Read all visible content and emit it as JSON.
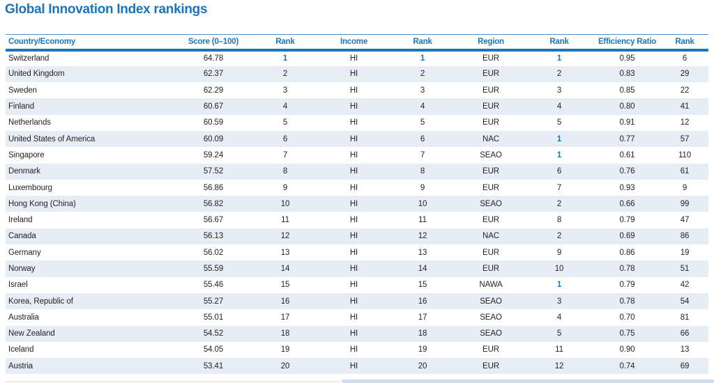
{
  "title": "Global Innovation Index rankings",
  "colors": {
    "accent": "#1b75bc",
    "row_stripe": "#e7edf4",
    "text": "#231f20",
    "top_rank": "#1b75bc",
    "bottom_bar": "#d3deea",
    "bottom_hairline": "#f1e8e6"
  },
  "table": {
    "headers": [
      "Country/Economy",
      "Score (0–100)",
      "Rank",
      "Income",
      "Rank",
      "Region",
      "Rank",
      "Efficiency Ratio",
      "Rank"
    ],
    "rows": [
      {
        "country": "Switzerland",
        "score": "64.78",
        "rank": "1",
        "rank_top": true,
        "income": "HI",
        "income_rank": "1",
        "income_rank_top": true,
        "region": "EUR",
        "region_rank": "1",
        "region_rank_top": true,
        "efficiency": "0.95",
        "efficiency_rank": "6"
      },
      {
        "country": "United Kingdom",
        "score": "62.37",
        "rank": "2",
        "income": "HI",
        "income_rank": "2",
        "region": "EUR",
        "region_rank": "2",
        "efficiency": "0.83",
        "efficiency_rank": "29"
      },
      {
        "country": "Sweden",
        "score": "62.29",
        "rank": "3",
        "income": "HI",
        "income_rank": "3",
        "region": "EUR",
        "region_rank": "3",
        "efficiency": "0.85",
        "efficiency_rank": "22"
      },
      {
        "country": "Finland",
        "score": "60.67",
        "rank": "4",
        "income": "HI",
        "income_rank": "4",
        "region": "EUR",
        "region_rank": "4",
        "efficiency": "0.80",
        "efficiency_rank": "41"
      },
      {
        "country": "Netherlands",
        "score": "60.59",
        "rank": "5",
        "income": "HI",
        "income_rank": "5",
        "region": "EUR",
        "region_rank": "5",
        "efficiency": "0.91",
        "efficiency_rank": "12"
      },
      {
        "country": "United States of America",
        "score": "60.09",
        "rank": "6",
        "income": "HI",
        "income_rank": "6",
        "region": "NAC",
        "region_rank": "1",
        "region_rank_top": true,
        "efficiency": "0.77",
        "efficiency_rank": "57"
      },
      {
        "country": "Singapore",
        "score": "59.24",
        "rank": "7",
        "income": "HI",
        "income_rank": "7",
        "region": "SEAO",
        "region_rank": "1",
        "region_rank_top": true,
        "efficiency": "0.61",
        "efficiency_rank": "110"
      },
      {
        "country": "Denmark",
        "score": "57.52",
        "rank": "8",
        "income": "HI",
        "income_rank": "8",
        "region": "EUR",
        "region_rank": "6",
        "efficiency": "0.76",
        "efficiency_rank": "61"
      },
      {
        "country": "Luxembourg",
        "score": "56.86",
        "rank": "9",
        "income": "HI",
        "income_rank": "9",
        "region": "EUR",
        "region_rank": "7",
        "efficiency": "0.93",
        "efficiency_rank": "9"
      },
      {
        "country": "Hong Kong (China)",
        "score": "56.82",
        "rank": "10",
        "income": "HI",
        "income_rank": "10",
        "region": "SEAO",
        "region_rank": "2",
        "efficiency": "0.66",
        "efficiency_rank": "99"
      },
      {
        "country": "Ireland",
        "score": "56.67",
        "rank": "11",
        "income": "HI",
        "income_rank": "11",
        "region": "EUR",
        "region_rank": "8",
        "efficiency": "0.79",
        "efficiency_rank": "47"
      },
      {
        "country": "Canada",
        "score": "56.13",
        "rank": "12",
        "income": "HI",
        "income_rank": "12",
        "region": "NAC",
        "region_rank": "2",
        "efficiency": "0.69",
        "efficiency_rank": "86"
      },
      {
        "country": "Germany",
        "score": "56.02",
        "rank": "13",
        "income": "HI",
        "income_rank": "13",
        "region": "EUR",
        "region_rank": "9",
        "efficiency": "0.86",
        "efficiency_rank": "19"
      },
      {
        "country": "Norway",
        "score": "55.59",
        "rank": "14",
        "income": "HI",
        "income_rank": "14",
        "region": "EUR",
        "region_rank": "10",
        "efficiency": "0.78",
        "efficiency_rank": "51"
      },
      {
        "country": "Israel",
        "score": "55.46",
        "rank": "15",
        "income": "HI",
        "income_rank": "15",
        "region": "NAWA",
        "region_rank": "1",
        "region_rank_top": true,
        "efficiency": "0.79",
        "efficiency_rank": "42"
      },
      {
        "country": "Korea, Republic of",
        "score": "55.27",
        "rank": "16",
        "income": "HI",
        "income_rank": "16",
        "region": "SEAO",
        "region_rank": "3",
        "efficiency": "0.78",
        "efficiency_rank": "54"
      },
      {
        "country": "Australia",
        "score": "55.01",
        "rank": "17",
        "income": "HI",
        "income_rank": "17",
        "region": "SEAO",
        "region_rank": "4",
        "efficiency": "0.70",
        "efficiency_rank": "81"
      },
      {
        "country": "New Zealand",
        "score": "54.52",
        "rank": "18",
        "income": "HI",
        "income_rank": "18",
        "region": "SEAO",
        "region_rank": "5",
        "efficiency": "0.75",
        "efficiency_rank": "66"
      },
      {
        "country": "Iceland",
        "score": "54.05",
        "rank": "19",
        "income": "HI",
        "income_rank": "19",
        "region": "EUR",
        "region_rank": "11",
        "efficiency": "0.90",
        "efficiency_rank": "13"
      },
      {
        "country": "Austria",
        "score": "53.41",
        "rank": "20",
        "income": "HI",
        "income_rank": "20",
        "region": "EUR",
        "region_rank": "12",
        "efficiency": "0.74",
        "efficiency_rank": "69"
      }
    ]
  }
}
